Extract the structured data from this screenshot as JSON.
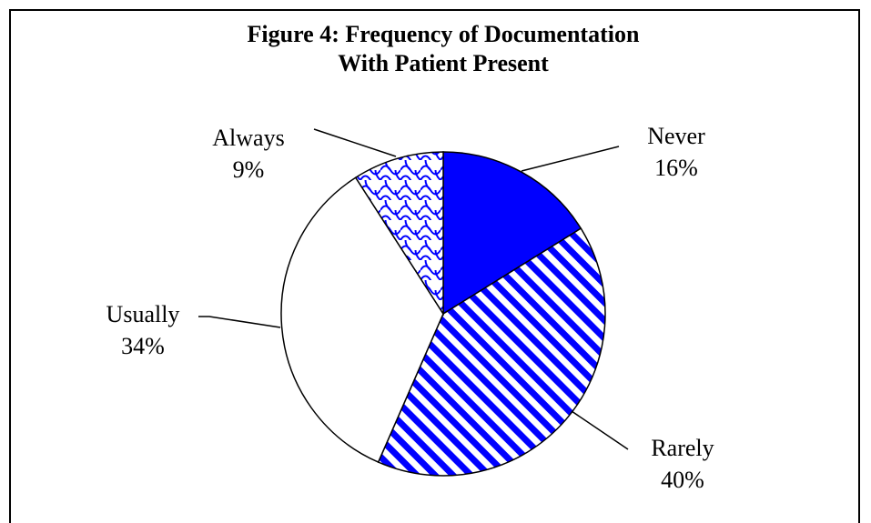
{
  "chart_data": {
    "type": "pie",
    "title": "Figure 4: Frequency of Documentation With Patient Present",
    "categories": [
      "Never",
      "Rarely",
      "Usually",
      "Always"
    ],
    "values": [
      16,
      40,
      34,
      9
    ],
    "value_labels": [
      "16%",
      "40%",
      "34%",
      "9%"
    ],
    "colors": [
      "#0000ff",
      "#0000ff",
      "#ffffff",
      "#0000ff"
    ],
    "patterns": [
      "solid",
      "stripes",
      "solid",
      "scales"
    ]
  }
}
